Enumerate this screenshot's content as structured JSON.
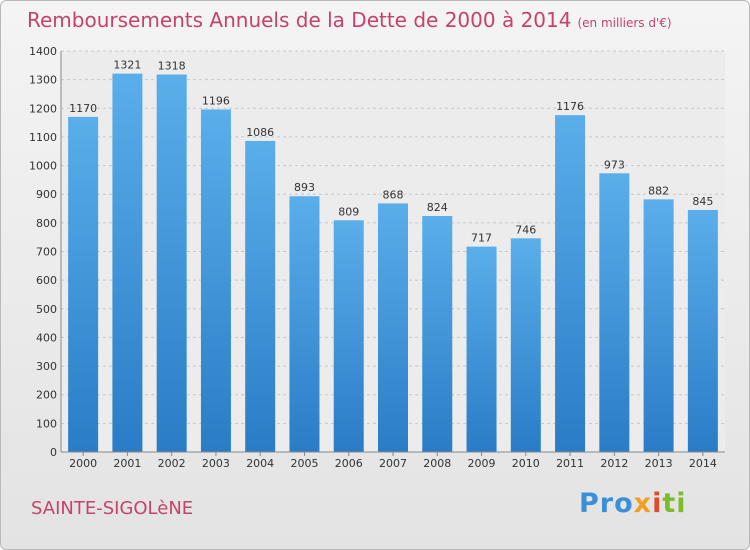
{
  "chart_data": {
    "type": "bar",
    "title": "Remboursements Annuels de la Dette de 2000 à 2014",
    "subtitle": "(en milliers d'€)",
    "categories": [
      "2000",
      "2001",
      "2002",
      "2003",
      "2004",
      "2005",
      "2006",
      "2007",
      "2008",
      "2009",
      "2010",
      "2011",
      "2012",
      "2013",
      "2014"
    ],
    "values": [
      1170,
      1321,
      1318,
      1196,
      1086,
      893,
      809,
      868,
      824,
      717,
      746,
      1176,
      973,
      882,
      845
    ],
    "ylim": [
      0,
      1400
    ],
    "yticks": [
      0,
      100,
      200,
      300,
      400,
      500,
      600,
      700,
      800,
      900,
      1000,
      1100,
      1200,
      1300,
      1400
    ],
    "grid": true,
    "bar_color": "#3a90d8"
  },
  "footer": {
    "city": "SAINTE-SIGOLèNE",
    "logo": "Proxiti",
    "logo_parts": [
      "Pro",
      "x",
      "i",
      "ti"
    ]
  }
}
